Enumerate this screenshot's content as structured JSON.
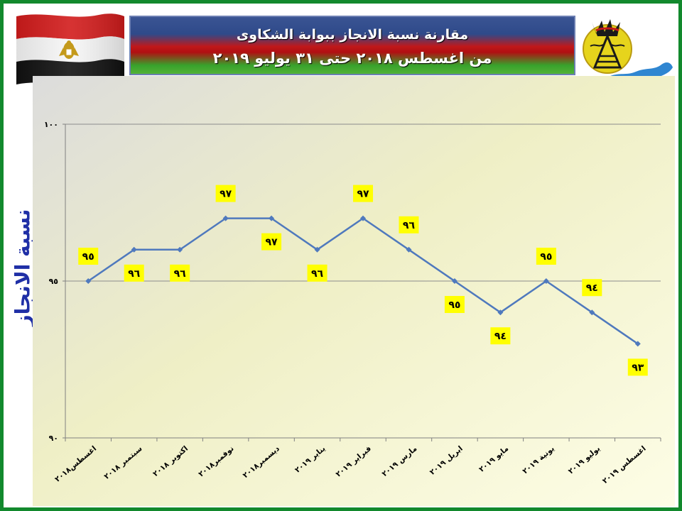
{
  "header": {
    "title_line1": "مقارنة نسبة الانجاز ببوابة الشكاوى",
    "title_line2": "من اغسطس ٢٠١٨ حتى ٣١ يوليو ٢٠١٩"
  },
  "icons": {
    "flag": "egypt-flag-icon",
    "emblem": "governorate-emblem-icon"
  },
  "colors": {
    "border": "#12892d",
    "line": "#4f79bd",
    "label_bg": "#ffff00",
    "axis_title": "#1f2fa6",
    "title_blue": "#2f4a8a",
    "title_red": "#c0181a",
    "title_green": "#38a22c"
  },
  "chart_data": {
    "type": "line",
    "title": "مقارنة نسبة الانجاز ببوابة الشكاوى",
    "subtitle": "من اغسطس ٢٠١٨ حتى ٣١ يوليو ٢٠١٩",
    "xlabel": "",
    "ylabel": "نسبة الانجاز",
    "ylim": [
      90,
      100
    ],
    "yticks": [
      90,
      95,
      100
    ],
    "ytick_labels": [
      "٩٠",
      "٩٥",
      "١٠٠"
    ],
    "grid": "horizontal",
    "categories": [
      "اغسطس٢٠١٨",
      "سبتمبر ٢٠١٨",
      "اكتوبر ٢٠١٨",
      "نوفمبر٢٠١٨",
      "ديسمبر٢٠١٨",
      "يناير ٢٠١٩",
      "فبراير ٢٠١٩",
      "مارس ٢٠١٩",
      "ابريل ٢٠١٩",
      "مايو ٢٠١٩",
      "يونية ٢٠١٩",
      "يوليو ٢٠١٩",
      "اغسطس ٢٠١٩"
    ],
    "values": [
      95,
      96,
      96,
      97,
      97,
      96,
      97,
      96,
      95,
      94,
      95,
      94,
      93
    ],
    "data_labels": [
      "٩٥",
      "٩٦",
      "٩٦",
      "٩٧",
      "٩٧",
      "٩٦",
      "٩٧",
      "٩٦",
      "٩٥",
      "٩٤",
      "٩٥",
      "٩٤",
      "٩٣"
    ]
  }
}
